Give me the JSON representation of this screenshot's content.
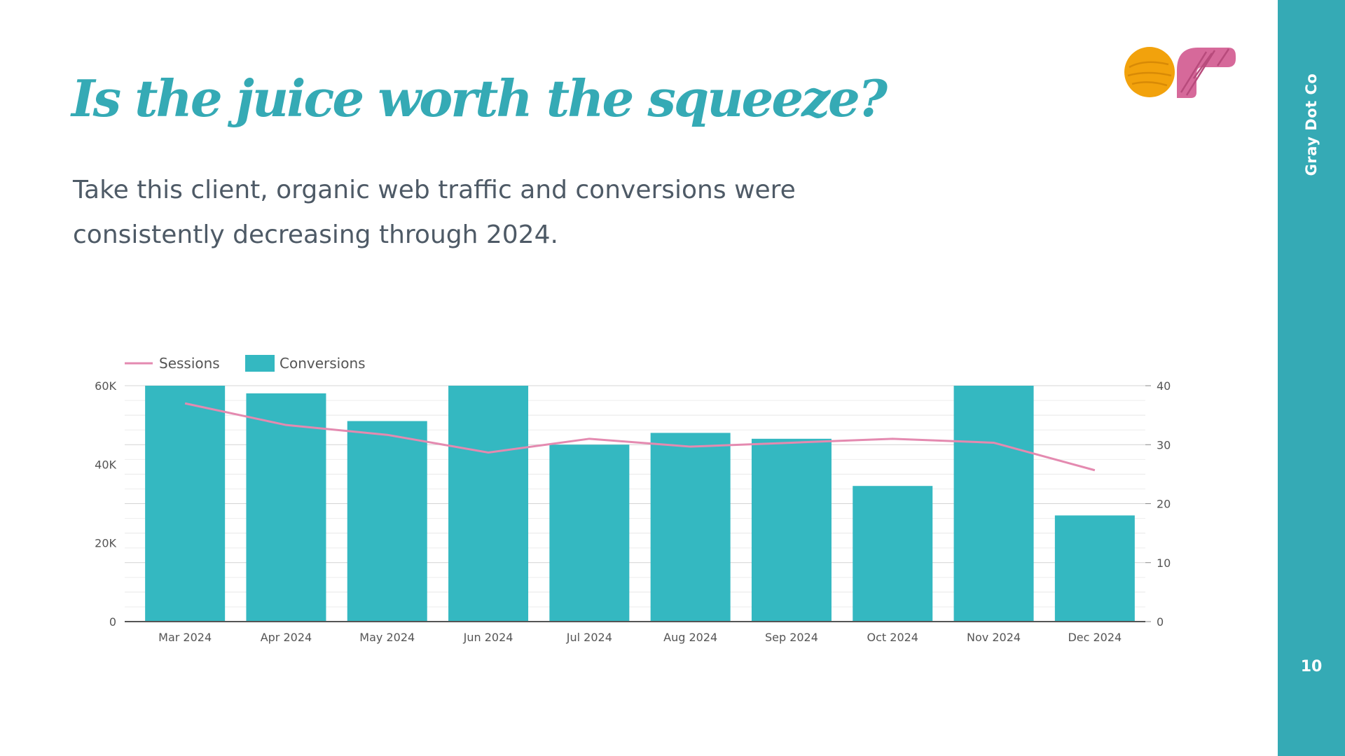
{
  "slide": {
    "title": "Is the juice worth the squeeze?",
    "subtitle": "Take this client, organic web traffic and conversions were consistently decreasing through 2024.",
    "brand": "Gray Dot Co",
    "page_number": "10"
  },
  "colors": {
    "accent": "#35aab5",
    "bar": "#34b8c1",
    "line": "#e48ab0",
    "text": "#4e5a66",
    "logo_orange": "#f2a20c",
    "logo_pink": "#d6699a"
  },
  "chart_data": {
    "type": "bar",
    "categories": [
      "Mar 2024",
      "Apr 2024",
      "May 2024",
      "Jun 2024",
      "Jul 2024",
      "Aug 2024",
      "Sep 2024",
      "Oct 2024",
      "Nov 2024",
      "Dec 2024"
    ],
    "series": [
      {
        "name": "Conversions",
        "type": "bar",
        "axis": "right",
        "values": [
          40,
          38.7,
          34,
          40,
          30,
          32,
          31,
          23,
          40,
          18
        ]
      },
      {
        "name": "Sessions",
        "type": "line",
        "axis": "left",
        "values": [
          55500,
          50000,
          47500,
          43000,
          46500,
          44500,
          45500,
          46500,
          45500,
          38500
        ]
      }
    ],
    "left_axis": {
      "min": 0,
      "max": 60000,
      "ticks": [
        0,
        20000,
        40000,
        60000
      ],
      "tick_labels": [
        "0",
        "20K",
        "40K",
        "60K"
      ]
    },
    "right_axis": {
      "min": 0,
      "max": 40,
      "ticks": [
        0,
        10,
        20,
        30,
        40
      ],
      "tick_labels": [
        "0",
        "10",
        "20",
        "30",
        "40"
      ]
    },
    "legend": {
      "position": "top-left",
      "items": [
        "Sessions",
        "Conversions"
      ]
    },
    "grid": true,
    "title": "",
    "xlabel": "",
    "ylabel": ""
  }
}
